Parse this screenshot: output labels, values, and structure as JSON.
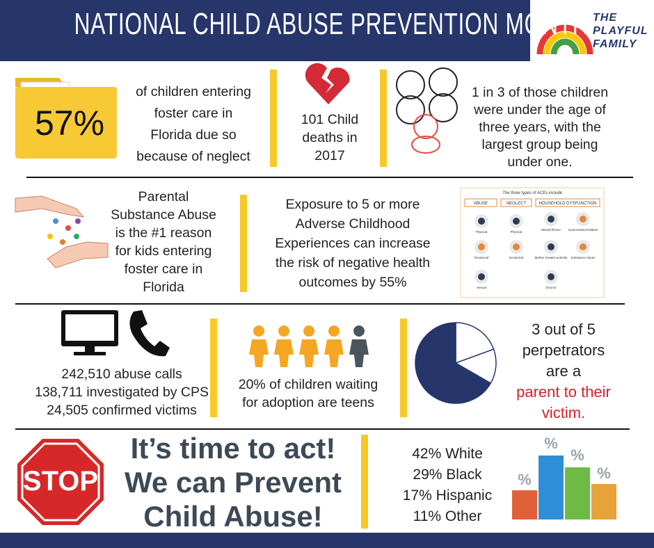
{
  "header": {
    "title": "NATIONAL CHILD ABUSE PREVENTION MONTH",
    "logo": [
      "THE",
      "PLAYFUL",
      "FAMILY"
    ]
  },
  "facts": {
    "neglect": {
      "stat": "57%",
      "lines": [
        "of children entering",
        "foster care in",
        "Florida due so",
        "because of neglect"
      ]
    },
    "deaths": {
      "lines": [
        "101 Child",
        "deaths in",
        "2017"
      ]
    },
    "age": {
      "lines": [
        "1 in 3 of those children",
        "were under the age of",
        "three years, with the",
        "largest group being",
        "under one."
      ]
    },
    "substance": {
      "lines": [
        "Parental",
        "Substance Abuse",
        "is the #1 reason",
        "for kids entering",
        "foster care in",
        "Florida"
      ]
    },
    "aces": {
      "lines": [
        "Exposure to 5 or more",
        "Adverse Childhood",
        "Experiences can increase",
        "the risk of negative health",
        "outcomes by 55%"
      ]
    },
    "aces_diagram": {
      "title": "The three types of ACEs include",
      "columns": [
        {
          "header": "ABUSE",
          "items": [
            "Physical",
            "Emotional",
            "Sexual"
          ]
        },
        {
          "header": "NEGLECT",
          "items": [
            "Physical",
            "Emotional"
          ]
        },
        {
          "header": "HOUSEHOLD DYSFUNCTION",
          "items": [
            "Mental Illness",
            "Incarcerated Relative",
            "Mother treated violently",
            "Substance Abuse",
            "Divorce"
          ]
        }
      ]
    },
    "calls": {
      "lines": [
        "242,510 abuse calls",
        "138,711 investigated by CPS",
        "24,505 confirmed victims"
      ]
    },
    "adoption": {
      "lines": [
        "20% of children waiting",
        "for adoption are teens"
      ]
    },
    "perpetrators": {
      "lines": [
        "3 out of 5",
        "perpetrators",
        "are a"
      ],
      "highlight": [
        "parent to their",
        "victim."
      ]
    },
    "call_to_action": {
      "stop": "STOP",
      "lines": [
        "It’s time to act!",
        "We can Prevent",
        "Child Abuse!"
      ]
    },
    "race": {
      "lines": [
        "42% White",
        "29% Black",
        "17% Hispanic",
        "11% Other"
      ],
      "icon_labels": [
        "%",
        "%",
        "%",
        "%"
      ]
    }
  }
}
